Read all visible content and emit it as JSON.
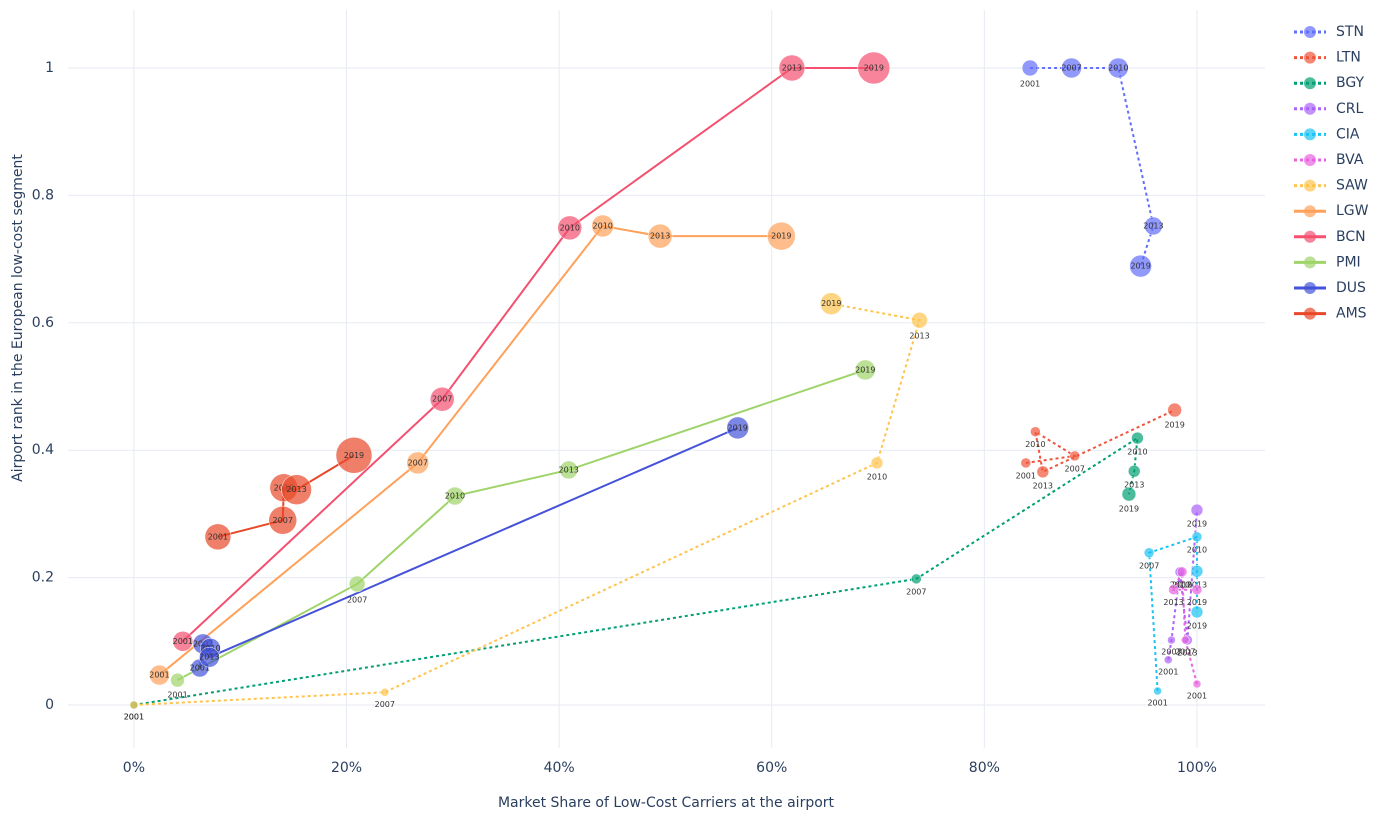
{
  "chart_data": {
    "type": "scatter",
    "xlabel": "Market Share of Low-Cost Carriers at the airport",
    "ylabel": "Airport rank in the European low-cost segment",
    "xlim": [
      -6.2,
      106.4
    ],
    "ylim": [
      -0.0675,
      1.091
    ],
    "xticks": [
      {
        "value": 0,
        "label": "0%"
      },
      {
        "value": 20,
        "label": "20%"
      },
      {
        "value": 40,
        "label": "40%"
      },
      {
        "value": 60,
        "label": "60%"
      },
      {
        "value": 80,
        "label": "80%"
      },
      {
        "value": 100,
        "label": "100%"
      }
    ],
    "yticks": [
      0,
      0.2,
      0.4,
      0.6,
      0.8,
      1
    ],
    "grid": true,
    "legend": "right",
    "series": [
      {
        "name": "STN",
        "color": "#636efa",
        "dash": "dot",
        "x": [
          84.3,
          88.2,
          92.6,
          95.9,
          94.7
        ],
        "y": [
          1.0,
          1.0,
          1.0,
          0.752,
          0.689
        ],
        "sizes": [
          16,
          20,
          20,
          18,
          22
        ],
        "labels": [
          "2001",
          "2007",
          "2010",
          "2013",
          "2019"
        ]
      },
      {
        "name": "LTN",
        "color": "#ef553b",
        "dash": "dot",
        "x": [
          83.9,
          88.5,
          84.8,
          85.5,
          97.9
        ],
        "y": [
          0.38,
          0.391,
          0.429,
          0.366,
          0.463
        ],
        "sizes": [
          10,
          10,
          10,
          12,
          14
        ],
        "labels": [
          "2001",
          "2007",
          "2010",
          "2013",
          "2019"
        ]
      },
      {
        "name": "BGY",
        "color": "#00a073",
        "dash": "dot",
        "x": [
          0,
          73.6,
          94.4,
          94.1,
          93.6
        ],
        "y": [
          0,
          0.198,
          0.419,
          0.367,
          0.331
        ],
        "sizes": [
          8,
          10,
          12,
          12,
          14
        ],
        "labels": [
          "2001",
          "2007",
          "2010",
          "2013",
          "2019"
        ]
      },
      {
        "name": "CRL",
        "color": "#ab63fa",
        "dash": "dot",
        "x": [
          97.3,
          97.6,
          98.4,
          99.1,
          100
        ],
        "y": [
          0.071,
          0.102,
          0.209,
          0.102,
          0.306
        ],
        "sizes": [
          8,
          8,
          10,
          10,
          12
        ],
        "labels": [
          "2001",
          "2007",
          "2010",
          "2013",
          "2019"
        ]
      },
      {
        "name": "CIA",
        "color": "#19c3f3",
        "dash": "dot",
        "x": [
          96.3,
          95.5,
          100,
          100,
          100
        ],
        "y": [
          0.022,
          0.239,
          0.264,
          0.21,
          0.146
        ],
        "sizes": [
          8,
          10,
          10,
          12,
          12
        ],
        "labels": [
          "2001",
          "2007",
          "2010",
          "2013",
          "2019"
        ]
      },
      {
        "name": "BVA",
        "color": "#e763e0",
        "dash": "dot",
        "x": [
          100,
          98.9,
          98.6,
          97.8,
          100
        ],
        "y": [
          0.033,
          0.102,
          0.209,
          0.181,
          0.181
        ],
        "sizes": [
          8,
          8,
          10,
          10,
          10
        ],
        "labels": [
          "2001",
          "2007",
          "2010",
          "2013",
          "2019"
        ]
      },
      {
        "name": "SAW",
        "color": "#fec44f",
        "dash": "dot",
        "x": [
          0,
          23.6,
          69.9,
          73.9,
          65.6
        ],
        "y": [
          0,
          0.02,
          0.38,
          0.604,
          0.63
        ],
        "sizes": [
          8,
          8,
          12,
          16,
          22
        ],
        "labels": [
          "2001",
          "2007",
          "2010",
          "2013",
          "2019"
        ]
      },
      {
        "name": "LGW",
        "color": "#ffa15a",
        "dash": "solid",
        "x": [
          2.4,
          26.7,
          44.1,
          49.5,
          60.9
        ],
        "y": [
          0.047,
          0.38,
          0.752,
          0.736,
          0.736
        ],
        "sizes": [
          20,
          22,
          22,
          24,
          28
        ],
        "labels": [
          "2001",
          "2007",
          "2010",
          "2013",
          "2019"
        ]
      },
      {
        "name": "BCN",
        "color": "#f4506f",
        "dash": "solid",
        "x": [
          4.6,
          29.0,
          41.0,
          61.9,
          69.6
        ],
        "y": [
          0.1,
          0.48,
          0.749,
          1.0,
          1.0
        ],
        "sizes": [
          20,
          24,
          24,
          26,
          32
        ],
        "labels": [
          "2001",
          "2007",
          "2010",
          "2013",
          "2019"
        ]
      },
      {
        "name": "PMI",
        "color": "#9fd46a",
        "dash": "solid",
        "x": [
          4.1,
          21.0,
          30.2,
          40.9,
          68.8
        ],
        "y": [
          0.039,
          0.19,
          0.328,
          0.369,
          0.526
        ],
        "sizes": [
          14,
          16,
          18,
          18,
          20
        ],
        "labels": [
          "2001",
          "2007",
          "2010",
          "2013",
          "2019"
        ]
      },
      {
        "name": "DUS",
        "color": "#4552d9",
        "dash": "solid",
        "x": [
          6.2,
          6.5,
          7.2,
          7.1,
          56.8
        ],
        "y": [
          0.058,
          0.096,
          0.089,
          0.075,
          0.435
        ],
        "sizes": [
          18,
          20,
          20,
          20,
          22
        ],
        "labels": [
          "2001",
          "2007",
          "2010",
          "2013",
          "2019"
        ]
      },
      {
        "name": "AMS",
        "color": "#e8482a",
        "dash": "solid",
        "x": [
          7.9,
          14.0,
          14.1,
          15.3,
          20.7
        ],
        "y": [
          0.264,
          0.29,
          0.341,
          0.338,
          0.392
        ],
        "sizes": [
          26,
          28,
          28,
          30,
          36
        ],
        "labels": [
          "2001",
          "2007",
          "2010",
          "2013",
          "2019"
        ]
      }
    ]
  }
}
